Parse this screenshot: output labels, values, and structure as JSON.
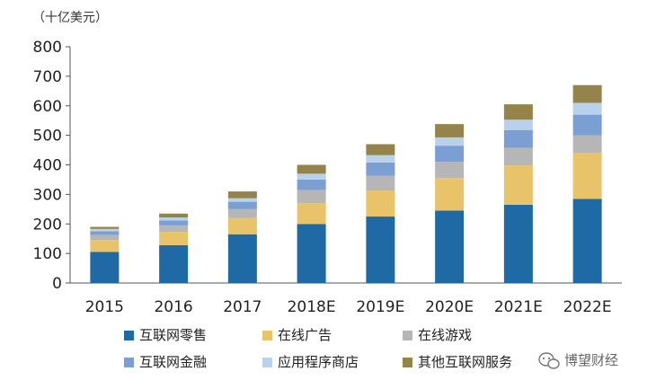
{
  "chart_data": {
    "type": "bar",
    "stacked": true,
    "unit_label": "（十亿美元）",
    "categories": [
      "2015",
      "2016",
      "2017",
      "2018E",
      "2019E",
      "2020E",
      "2021E",
      "2022E"
    ],
    "ylim": [
      0,
      800
    ],
    "yticks": [
      0,
      100,
      200,
      300,
      400,
      500,
      600,
      700,
      800
    ],
    "grid": false,
    "legend_position": "bottom",
    "series": [
      {
        "name": "互联网零售",
        "color": "#1f6aa5",
        "values": [
          105,
          128,
          165,
          200,
          225,
          245,
          265,
          285
        ]
      },
      {
        "name": "在线广告",
        "color": "#e9c36a",
        "values": [
          40,
          45,
          55,
          70,
          88,
          110,
          133,
          155
        ]
      },
      {
        "name": "在线游戏",
        "color": "#b6b6b6",
        "values": [
          18,
          22,
          30,
          45,
          50,
          55,
          60,
          60
        ]
      },
      {
        "name": "互联网金融",
        "color": "#7b9fd2",
        "values": [
          12,
          17,
          25,
          35,
          45,
          55,
          60,
          70
        ]
      },
      {
        "name": "应用程序商店",
        "color": "#b9d1ea",
        "values": [
          8,
          10,
          12,
          20,
          25,
          28,
          35,
          40
        ]
      },
      {
        "name": "其他互联网服务",
        "color": "#94834a",
        "values": [
          7,
          13,
          23,
          30,
          37,
          45,
          52,
          60
        ]
      }
    ]
  },
  "watermark": {
    "text": "博望财经",
    "icon": "wechat-logo-icon"
  }
}
